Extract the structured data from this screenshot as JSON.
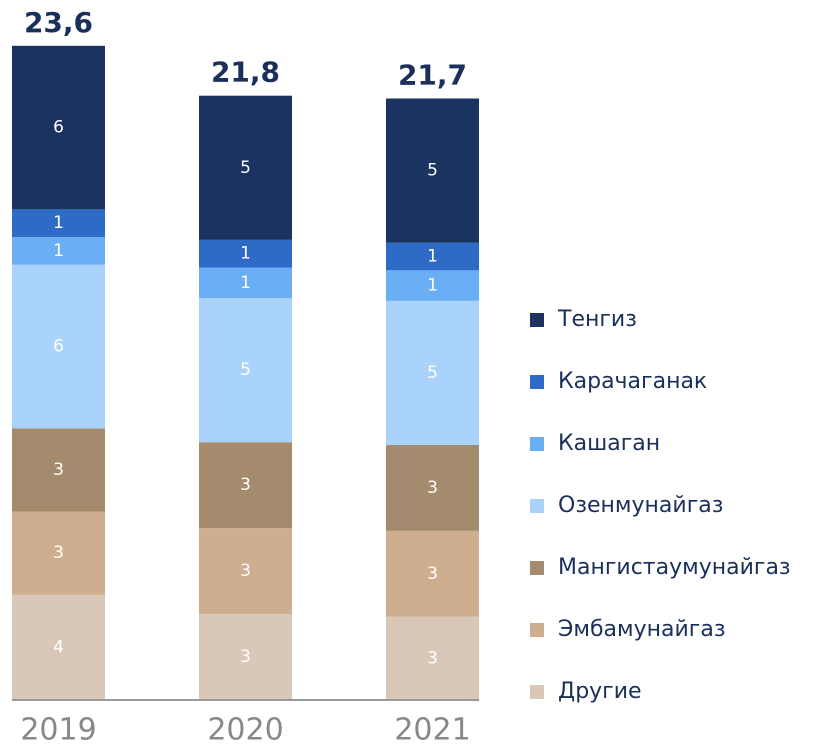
{
  "chart_data": {
    "type": "stacked_bar",
    "categories": [
      "2019",
      "2020",
      "2021"
    ],
    "series": [
      {
        "name": "Тенгиз",
        "color": "#1a3360",
        "values": [
          5.9,
          5.2,
          5.2
        ],
        "value_labels": [
          "6",
          "5",
          "5"
        ]
      },
      {
        "name": "Карачаганак",
        "color": "#2e6bc6",
        "values": [
          1.0,
          1.0,
          1.0
        ],
        "value_labels": [
          "1",
          "1",
          "1"
        ]
      },
      {
        "name": "Кашаган",
        "color": "#6aaef5",
        "values": [
          1.0,
          1.1,
          1.1
        ],
        "value_labels": [
          "1",
          "1",
          "1"
        ]
      },
      {
        "name": "Озенмунайгаз",
        "color": "#aad3fb",
        "values": [
          5.9,
          5.2,
          5.2
        ],
        "value_labels": [
          "6",
          "5",
          "5"
        ]
      },
      {
        "name": "Мангистаумунайгаз",
        "color": "#a58b6d",
        "values": [
          3.0,
          3.1,
          3.1
        ],
        "value_labels": [
          "3",
          "3",
          "3"
        ]
      },
      {
        "name": "Эмбамунайгаз",
        "color": "#cfae8f",
        "values": [
          3.0,
          3.1,
          3.1
        ],
        "value_labels": [
          "3",
          "3",
          "3"
        ]
      },
      {
        "name": "Другие",
        "color": "#d9c7b7",
        "values": [
          3.8,
          3.1,
          3.0
        ],
        "value_labels": [
          "4",
          "3",
          "3"
        ]
      }
    ],
    "totals": [
      23.6,
      21.8,
      21.7
    ],
    "total_labels": [
      "23,6",
      "21,8",
      "21,7"
    ],
    "ylim": [
      0,
      25
    ]
  }
}
